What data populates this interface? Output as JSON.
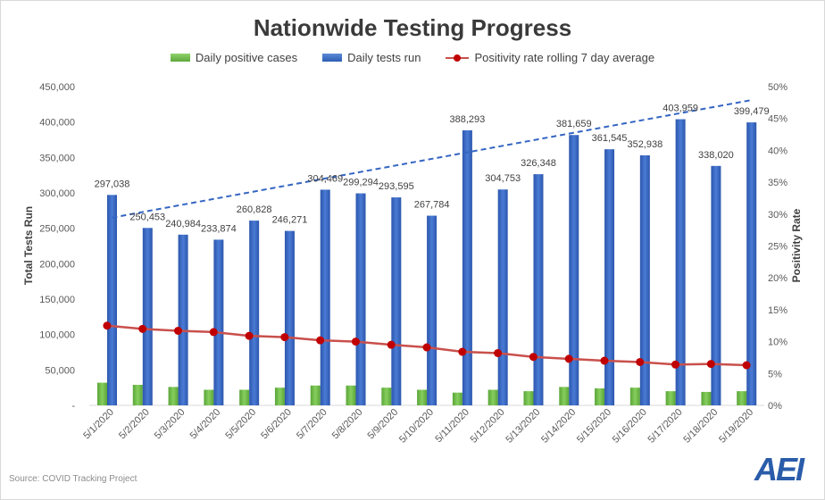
{
  "source_text": "Source: COVID Tracking Project",
  "logo_text": "AEI",
  "colors": {
    "positive_bar": "#70c04a",
    "tests_bar": "#3565c3",
    "positivity_line": "#c9504c",
    "positivity_marker": "#c00000",
    "trendline": "#3565c3"
  },
  "chart_data": {
    "type": "bar",
    "title": "Nationwide Testing Progress",
    "ylabel": "Total Tests Run",
    "y2label": "Positivity Rate",
    "legend_position": "top",
    "grid": false,
    "ylim": [
      0,
      450000
    ],
    "y2lim": [
      0,
      50
    ],
    "y_ticks": [
      "-",
      "50,000",
      "100,000",
      "150,000",
      "200,000",
      "250,000",
      "300,000",
      "350,000",
      "400,000",
      "450,000"
    ],
    "y2_ticks": [
      "0%",
      "5%",
      "10%",
      "15%",
      "20%",
      "25%",
      "30%",
      "35%",
      "40%",
      "45%",
      "50%"
    ],
    "categories": [
      "5/1/2020",
      "5/2/2020",
      "5/3/2020",
      "5/4/2020",
      "5/5/2020",
      "5/6/2020",
      "5/7/2020",
      "5/8/2020",
      "5/9/2020",
      "5/10/2020",
      "5/11/2020",
      "5/12/2020",
      "5/13/2020",
      "5/14/2020",
      "5/15/2020",
      "5/16/2020",
      "5/17/2020",
      "5/18/2020",
      "5/19/2020"
    ],
    "series": [
      {
        "name": "Daily positive cases",
        "type": "bar",
        "axis": "left",
        "values": [
          32000,
          29000,
          26000,
          22000,
          22000,
          25000,
          28000,
          28000,
          25000,
          22000,
          18000,
          22000,
          20000,
          26000,
          24000,
          25000,
          20000,
          19000,
          20000
        ]
      },
      {
        "name": "Daily tests run",
        "type": "bar",
        "axis": "left",
        "values": [
          297038,
          250453,
          240984,
          233874,
          260828,
          246271,
          304469,
          299294,
          293595,
          267784,
          388293,
          304753,
          326348,
          381659,
          361545,
          352938,
          403959,
          338020,
          399479
        ],
        "labels": [
          "297,038",
          "250,453",
          "240,984",
          "233,874",
          "260,828",
          "246,271",
          "304,469",
          "299,294",
          "293,595",
          "267,784",
          "388,293",
          "304,753",
          "326,348",
          "381,659",
          "361,545",
          "352,938",
          "403,959",
          "338,020",
          "399,479"
        ]
      },
      {
        "name": "Positivity rate rolling 7 day average",
        "type": "line",
        "axis": "right",
        "values": [
          12.5,
          12.0,
          11.7,
          11.5,
          10.9,
          10.7,
          10.2,
          10.0,
          9.5,
          9.1,
          8.4,
          8.2,
          7.6,
          7.3,
          7.0,
          6.8,
          6.4,
          6.5,
          6.3
        ]
      }
    ],
    "trendline": {
      "series": "Daily tests run",
      "style": "dashed",
      "start": 265000,
      "end": 431000
    }
  }
}
